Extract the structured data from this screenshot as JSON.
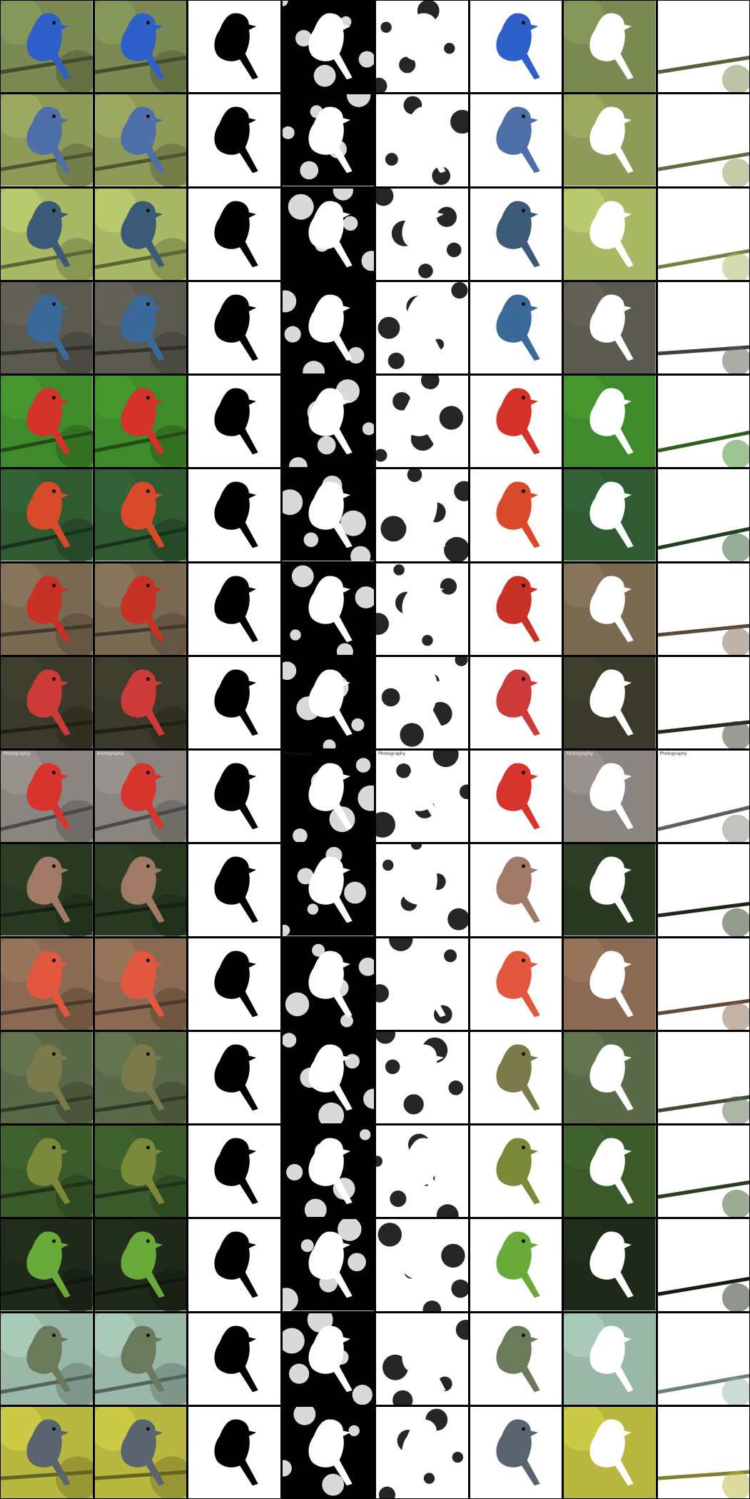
{
  "grid": {
    "columns": 8,
    "rows": 16,
    "column_kinds": [
      "input",
      "reconstruction",
      "object-mask",
      "background-mask",
      "background-mask-2",
      "foreground",
      "background",
      "background-2"
    ]
  },
  "rows": [
    {
      "bird": "blue bird",
      "bird_color": "#2f5fc8",
      "bg_color": "#7a8a52",
      "watermark": ""
    },
    {
      "bird": "blue-orange bird",
      "bird_color": "#4f6fa8",
      "bg_color": "#8e9a58",
      "watermark": ""
    },
    {
      "bird": "blue bird",
      "bird_color": "#3a5a78",
      "bg_color": "#a8b864",
      "watermark": ""
    },
    {
      "bird": "blue-orange bird",
      "bird_color": "#3b6a9a",
      "bg_color": "#5b5a50",
      "watermark": ""
    },
    {
      "bird": "painted bird",
      "bird_color": "#d4322a",
      "bg_color": "#3f8a2a",
      "watermark": ""
    },
    {
      "bird": "painted bird",
      "bird_color": "#d84a2a",
      "bg_color": "#2f5a32",
      "watermark": ""
    },
    {
      "bird": "painted bird",
      "bird_color": "#c83226",
      "bg_color": "#7a6a52",
      "watermark": ""
    },
    {
      "bird": "painted bird",
      "bird_color": "#cc3a3a",
      "bg_color": "#3a3a2a",
      "watermark": ""
    },
    {
      "bird": "red cardinal",
      "bird_color": "#d8342e",
      "bg_color": "#8a8580",
      "watermark": "Photography"
    },
    {
      "bird": "cardinal female",
      "bird_color": "#a07a66",
      "bg_color": "#2a3a22",
      "watermark": ""
    },
    {
      "bird": "red cardinal",
      "bird_color": "#e2583e",
      "bg_color": "#8a6a52",
      "watermark": ""
    },
    {
      "bird": "camouflaged bird",
      "bird_color": "#7a7a4a",
      "bg_color": "#5a6a48",
      "watermark": ""
    },
    {
      "bird": "green bird",
      "bird_color": "#7a8a3a",
      "bg_color": "#3a5a2a",
      "watermark": ""
    },
    {
      "bird": "green bird",
      "bird_color": "#6aaa3a",
      "bg_color": "#1f2a1a",
      "watermark": ""
    },
    {
      "bird": "green bird",
      "bird_color": "#6a7a5a",
      "bg_color": "#9ab8a8",
      "watermark": ""
    },
    {
      "bird": "grey bird",
      "bird_color": "#5a6470",
      "bg_color": "#b8b840",
      "watermark": ""
    }
  ],
  "colors": {
    "frame": "#000000",
    "mask_fg": "#000000",
    "mask_bg": "#ffffff"
  }
}
